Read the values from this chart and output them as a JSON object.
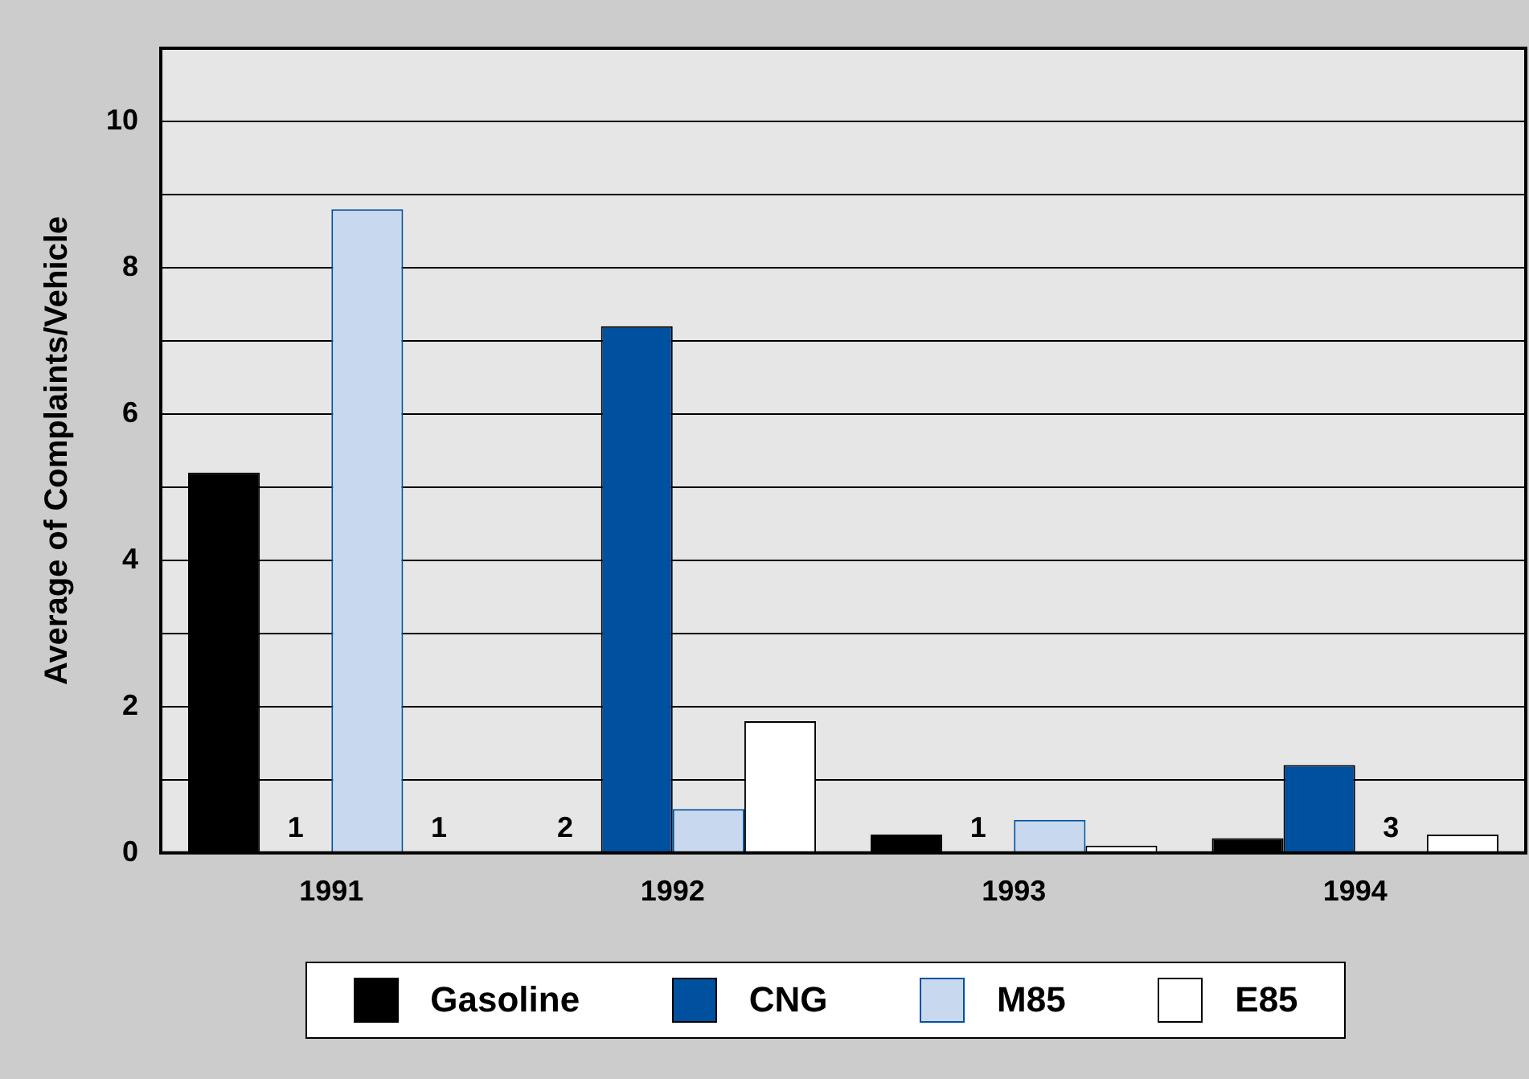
{
  "chart_data": {
    "type": "bar",
    "ylabel": "Average of Complaints/Vehicle",
    "categories": [
      "1991",
      "1992",
      "1993",
      "1994"
    ],
    "series": [
      {
        "name": "Gasoline",
        "color": "#000000",
        "values": [
          5.2,
          null,
          0.25,
          0.2
        ]
      },
      {
        "name": "CNG",
        "color": "#0050a0",
        "values": [
          null,
          7.2,
          null,
          1.2
        ]
      },
      {
        "name": "M85",
        "color": "#c8d8ee",
        "values": [
          8.8,
          0.6,
          0.45,
          null
        ]
      },
      {
        "name": "E85",
        "color": "#ffffff",
        "values": [
          null,
          1.8,
          0.1,
          0.25
        ]
      }
    ],
    "annotations": [
      "1",
      "1",
      "2",
      "1",
      "3"
    ],
    "ylim": [
      0,
      11
    ],
    "yticks": [
      0,
      {
        "value": 1,
        "label": null
      },
      2,
      {
        "value": 3,
        "label": null
      },
      4,
      {
        "value": 5,
        "label": null
      },
      6,
      {
        "value": 7,
        "label": null
      },
      8,
      {
        "value": 9,
        "label": null
      },
      10
    ],
    "grid": "y",
    "legend": "bottom"
  }
}
